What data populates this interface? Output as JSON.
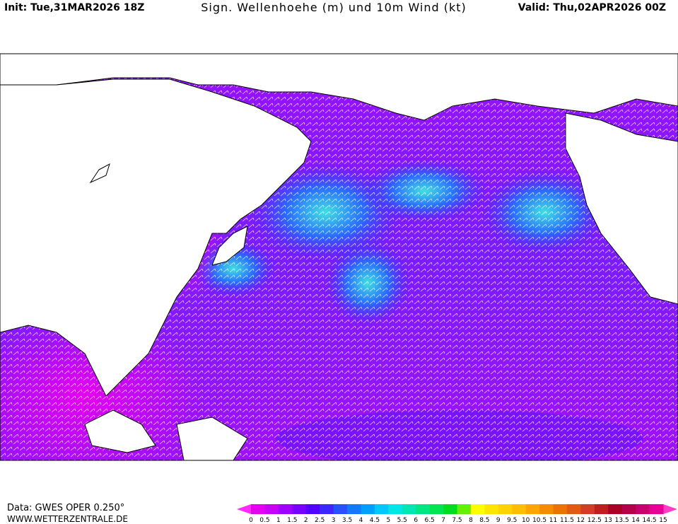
{
  "header": {
    "init": "Init: Tue,31MAR2026 18Z",
    "title": "Sign. Wellenhoehe (m) und 10m Wind (kt)",
    "valid": "Valid: Thu,02APR2026 00Z"
  },
  "footer": {
    "source": "Data: GWES OPER 0.250°",
    "url": "WWW.WETTERZENTRALE.DE"
  },
  "colorbar": {
    "labels": [
      0,
      0.5,
      1,
      1.5,
      2,
      2.5,
      3,
      3.5,
      4,
      4.5,
      5,
      5.5,
      6,
      6.5,
      7,
      7.5,
      8,
      8.5,
      9,
      9.5,
      10,
      10.5,
      11,
      11.5,
      12,
      12.5,
      13,
      13.5,
      14,
      14.5,
      15
    ],
    "colors": [
      "#e600f0",
      "#c800f5",
      "#a000ff",
      "#7800ff",
      "#5000ff",
      "#3c28ff",
      "#2850ff",
      "#1478ff",
      "#00a0ff",
      "#00c8ff",
      "#00e6e6",
      "#00e6b4",
      "#00e682",
      "#00e650",
      "#00dc1e",
      "#64f000",
      "#ffff00",
      "#ffe600",
      "#ffd200",
      "#ffbe00",
      "#ffa500",
      "#f58c00",
      "#eb7300",
      "#e15a14",
      "#d23c28",
      "#be1e1e",
      "#aa0028",
      "#b4004b",
      "#c8006e",
      "#e60096"
    ],
    "under_color": "#ff28ff",
    "over_color": "#ff3cc8"
  }
}
